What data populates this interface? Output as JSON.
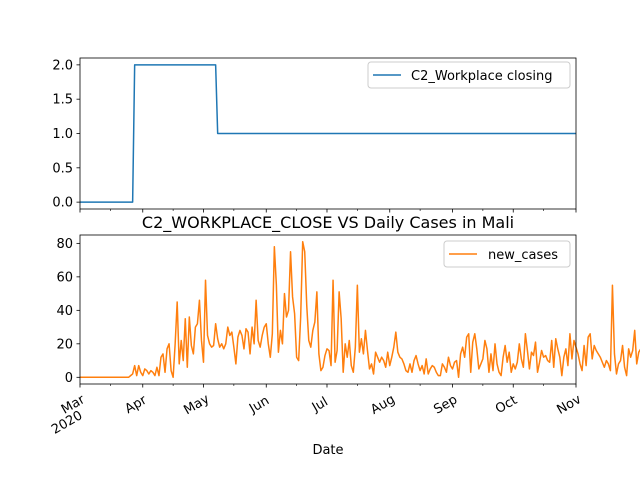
{
  "chart_data": [
    {
      "type": "line",
      "title": "",
      "xlabel": "",
      "ylabel": "",
      "ylim": [
        -0.1,
        2.1
      ],
      "xlim": [
        "2020-03-01",
        "2020-11-01"
      ],
      "yticks": [
        "0.0",
        "0.5",
        "1.0",
        "1.5",
        "2.0"
      ],
      "ytick_values": [
        0,
        0.5,
        1,
        1.5,
        2
      ],
      "grid": false,
      "legend_placement": "top-right",
      "color": "#1f77b4",
      "series": [
        {
          "name": "C2_Workplace closing",
          "x": [
            "2020-03-01",
            "2020-03-27",
            "2020-03-28",
            "2020-05-07",
            "2020-05-08",
            "2020-11-01"
          ],
          "values": [
            0,
            0,
            2,
            2,
            1,
            1
          ]
        }
      ]
    },
    {
      "type": "line",
      "title": "C2_WORKPLACE_CLOSE VS Daily Cases in Mali",
      "xlabel": "Date",
      "ylabel": "",
      "ylim": [
        -4,
        85
      ],
      "xlim": [
        "2020-03-01",
        "2020-11-01"
      ],
      "yticks": [
        "0",
        "20",
        "40",
        "60",
        "80"
      ],
      "ytick_values": [
        0,
        20,
        40,
        60,
        80
      ],
      "xticks": [
        {
          "date": "2020-03-01",
          "label": "Mar",
          "sub": "2020"
        },
        {
          "date": "2020-04-01",
          "label": "Apr",
          "sub": ""
        },
        {
          "date": "2020-05-01",
          "label": "May",
          "sub": ""
        },
        {
          "date": "2020-06-01",
          "label": "Jun",
          "sub": ""
        },
        {
          "date": "2020-07-01",
          "label": "Jul",
          "sub": ""
        },
        {
          "date": "2020-08-01",
          "label": "Aug",
          "sub": ""
        },
        {
          "date": "2020-09-01",
          "label": "Sep",
          "sub": ""
        },
        {
          "date": "2020-10-01",
          "label": "Oct",
          "sub": ""
        },
        {
          "date": "2020-11-01",
          "label": "Nov",
          "sub": ""
        }
      ],
      "grid": false,
      "legend_placement": "top-right",
      "color": "#ff7f0e",
      "series": [
        {
          "name": "new_cases",
          "start_date": "2020-03-01",
          "values": [
            0,
            0,
            0,
            0,
            0,
            0,
            0,
            0,
            0,
            0,
            0,
            0,
            0,
            0,
            0,
            0,
            0,
            0,
            0,
            0,
            0,
            0,
            0,
            0,
            0,
            1,
            2,
            7,
            1,
            7,
            3,
            1,
            5,
            4,
            2,
            4,
            3,
            1,
            6,
            1,
            12,
            14,
            3,
            17,
            20,
            4,
            0,
            20,
            45,
            8,
            22,
            10,
            35,
            6,
            36,
            19,
            14,
            30,
            32,
            46,
            22,
            9,
            58,
            25,
            20,
            18,
            19,
            32,
            23,
            18,
            20,
            17,
            20,
            30,
            25,
            27,
            18,
            8,
            24,
            28,
            25,
            17,
            29,
            27,
            14,
            30,
            20,
            46,
            22,
            18,
            25,
            30,
            32,
            20,
            12,
            26,
            78,
            55,
            15,
            28,
            20,
            50,
            36,
            40,
            75,
            48,
            38,
            12,
            10,
            36,
            81,
            75,
            43,
            22,
            18,
            28,
            33,
            51,
            14,
            4,
            6,
            13,
            17,
            16,
            7,
            58,
            9,
            16,
            51,
            35,
            3,
            20,
            12,
            22,
            7,
            3,
            18,
            55,
            15,
            23,
            14,
            28,
            16,
            5,
            8,
            2,
            15,
            12,
            9,
            12,
            10,
            6,
            15,
            7,
            12,
            18,
            27,
            15,
            12,
            11,
            8,
            4,
            3,
            8,
            3,
            10,
            13,
            8,
            4,
            7,
            2,
            11,
            2,
            5,
            7,
            6,
            3,
            1,
            1,
            8,
            6,
            3,
            12,
            7,
            5,
            9,
            10,
            0,
            14,
            18,
            12,
            24,
            26,
            3,
            21,
            26,
            17,
            5,
            8,
            11,
            22,
            17,
            3,
            14,
            4,
            20,
            8,
            3,
            1,
            12,
            19,
            9,
            15,
            3,
            8,
            5,
            9,
            20,
            11,
            6,
            26,
            16,
            5,
            15,
            13,
            21,
            3,
            9,
            16,
            12,
            13,
            10,
            9,
            22,
            6,
            23,
            17,
            12,
            1,
            12,
            17,
            7,
            26,
            11,
            22,
            18,
            14,
            8,
            4,
            19,
            7,
            24,
            26,
            11,
            19,
            16,
            14,
            12,
            9,
            6,
            10,
            8,
            4,
            55,
            14,
            2,
            8,
            10,
            19,
            6,
            1,
            17,
            12,
            16,
            28,
            8,
            15,
            17,
            12,
            6,
            9,
            11
          ]
        }
      ]
    }
  ]
}
